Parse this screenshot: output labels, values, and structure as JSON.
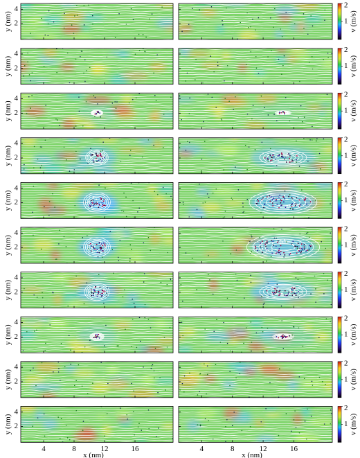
{
  "chart_data": {
    "type": "heatmap",
    "x_label": "x (nm)",
    "y_label": "y (nm)",
    "colorbar_label": "v (m/s)",
    "xlim": [
      1,
      21
    ],
    "xticks": [
      4,
      8,
      12,
      16
    ],
    "ylim": [
      -0.2,
      4.8
    ],
    "yticks": [
      2,
      4
    ],
    "clim": [
      0,
      2
    ],
    "cticks": [
      1,
      2
    ]
  }
}
